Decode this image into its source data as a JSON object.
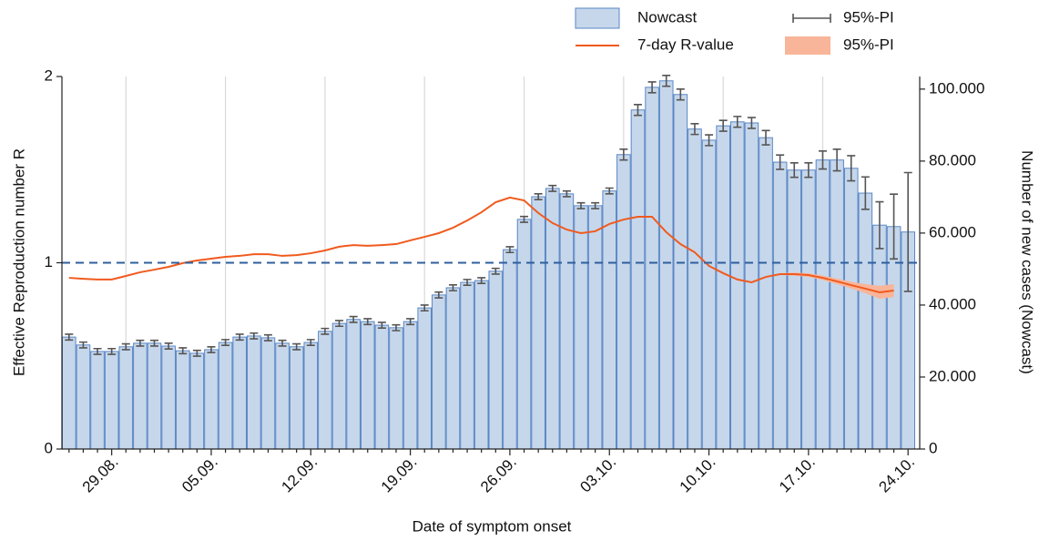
{
  "chart_data": {
    "type": "bar",
    "xlabel": "Date of symptom onset",
    "ylabel": "Effective Reproduction number R",
    "y2label": "Number of new cases (Nowcast)",
    "categories": [
      null,
      null,
      null,
      "29.08.",
      null,
      null,
      null,
      null,
      null,
      null,
      "05.09.",
      null,
      null,
      null,
      null,
      null,
      null,
      "12.09.",
      null,
      null,
      null,
      null,
      null,
      null,
      "19.09.",
      null,
      null,
      null,
      null,
      null,
      null,
      "26.09.",
      null,
      null,
      null,
      null,
      null,
      null,
      "03.10.",
      null,
      null,
      null,
      null,
      null,
      null,
      "10.10.",
      null,
      null,
      null,
      null,
      null,
      null,
      "17.10.",
      null,
      null,
      null,
      null,
      null,
      null,
      "24.10."
    ],
    "ylim": [
      0,
      2
    ],
    "yticks": [
      0,
      1,
      2
    ],
    "y2lim": [
      0,
      103500
    ],
    "y2ticks": [
      0,
      {
        "value": 20000,
        "label": "20.000"
      },
      {
        "value": 40000,
        "label": "40.000"
      },
      {
        "value": 60000,
        "label": "60.000"
      },
      {
        "value": 80000,
        "label": "80.000"
      },
      {
        "value": 100000,
        "label": "100.000"
      }
    ],
    "hline": 1,
    "hline_color": "#2f5f9e",
    "grid": true,
    "series": [
      {
        "name": "Nowcast",
        "type": "bar",
        "axis": "y2",
        "color": "#c6d7eb",
        "edgecolor": "#5a87c5",
        "error_name": "95%-PI",
        "error_color": "#555555",
        "values": [
          31100,
          28900,
          27100,
          27100,
          28400,
          29400,
          29400,
          28600,
          27300,
          26600,
          27600,
          29600,
          31100,
          31400,
          30900,
          29400,
          28400,
          29600,
          32700,
          34900,
          36000,
          35400,
          34400,
          33700,
          35400,
          39200,
          42800,
          44800,
          46300,
          46800,
          49400,
          55400,
          63800,
          70100,
          72400,
          70900,
          67600,
          67600,
          71700,
          81800,
          94200,
          100500,
          102300,
          98500,
          88900,
          85800,
          89800,
          90900,
          90600,
          86500,
          79700,
          77500,
          77500,
          80300,
          80300,
          78000,
          71100,
          62200,
          61800,
          60300
        ],
        "errors": [
          800,
          800,
          800,
          800,
          800,
          800,
          800,
          800,
          800,
          800,
          800,
          800,
          800,
          800,
          800,
          800,
          800,
          800,
          800,
          800,
          800,
          800,
          800,
          800,
          800,
          800,
          800,
          800,
          800,
          800,
          800,
          800,
          800,
          800,
          800,
          800,
          800,
          800,
          800,
          1500,
          1500,
          1500,
          1500,
          1500,
          1500,
          1500,
          1500,
          1500,
          1500,
          2000,
          2000,
          2000,
          2000,
          2500,
          3000,
          3500,
          4500,
          6500,
          9000,
          16500
        ]
      },
      {
        "name": "7-day R-value",
        "type": "line",
        "color": "#f05a1e",
        "band_name": "95%-PI",
        "band_color": "#f8b59a",
        "values": [
          0.919,
          0.914,
          0.91,
          0.91,
          0.929,
          0.949,
          0.963,
          0.978,
          0.998,
          1.012,
          1.022,
          1.032,
          1.037,
          1.046,
          1.046,
          1.037,
          1.041,
          1.051,
          1.066,
          1.086,
          1.095,
          1.091,
          1.095,
          1.1,
          1.12,
          1.139,
          1.159,
          1.188,
          1.227,
          1.271,
          1.325,
          1.35,
          1.335,
          1.267,
          1.213,
          1.178,
          1.159,
          1.169,
          1.208,
          1.232,
          1.247,
          1.247,
          1.164,
          1.1,
          1.056,
          0.983,
          0.944,
          0.91,
          0.895,
          0.924,
          0.939,
          0.939,
          0.934,
          0.919,
          0.9,
          0.88,
          0.861,
          0.841,
          0.851,
          null
        ],
        "lower": [
          null,
          null,
          null,
          null,
          null,
          null,
          null,
          null,
          null,
          null,
          null,
          null,
          null,
          null,
          null,
          null,
          null,
          null,
          null,
          null,
          null,
          null,
          null,
          null,
          null,
          null,
          null,
          null,
          null,
          null,
          null,
          null,
          null,
          null,
          null,
          null,
          null,
          null,
          null,
          null,
          null,
          null,
          null,
          null,
          null,
          null,
          null,
          null,
          null,
          null,
          0.934,
          0.931,
          0.924,
          0.907,
          0.885,
          0.862,
          0.836,
          0.806,
          0.816,
          null
        ],
        "upper": [
          null,
          null,
          null,
          null,
          null,
          null,
          null,
          null,
          null,
          null,
          null,
          null,
          null,
          null,
          null,
          null,
          null,
          null,
          null,
          null,
          null,
          null,
          null,
          null,
          null,
          null,
          null,
          null,
          null,
          null,
          null,
          null,
          null,
          null,
          null,
          null,
          null,
          null,
          null,
          null,
          null,
          null,
          null,
          null,
          null,
          null,
          null,
          null,
          null,
          null,
          0.944,
          0.947,
          0.944,
          0.931,
          0.915,
          0.898,
          0.886,
          0.876,
          0.886,
          null
        ]
      }
    ]
  }
}
